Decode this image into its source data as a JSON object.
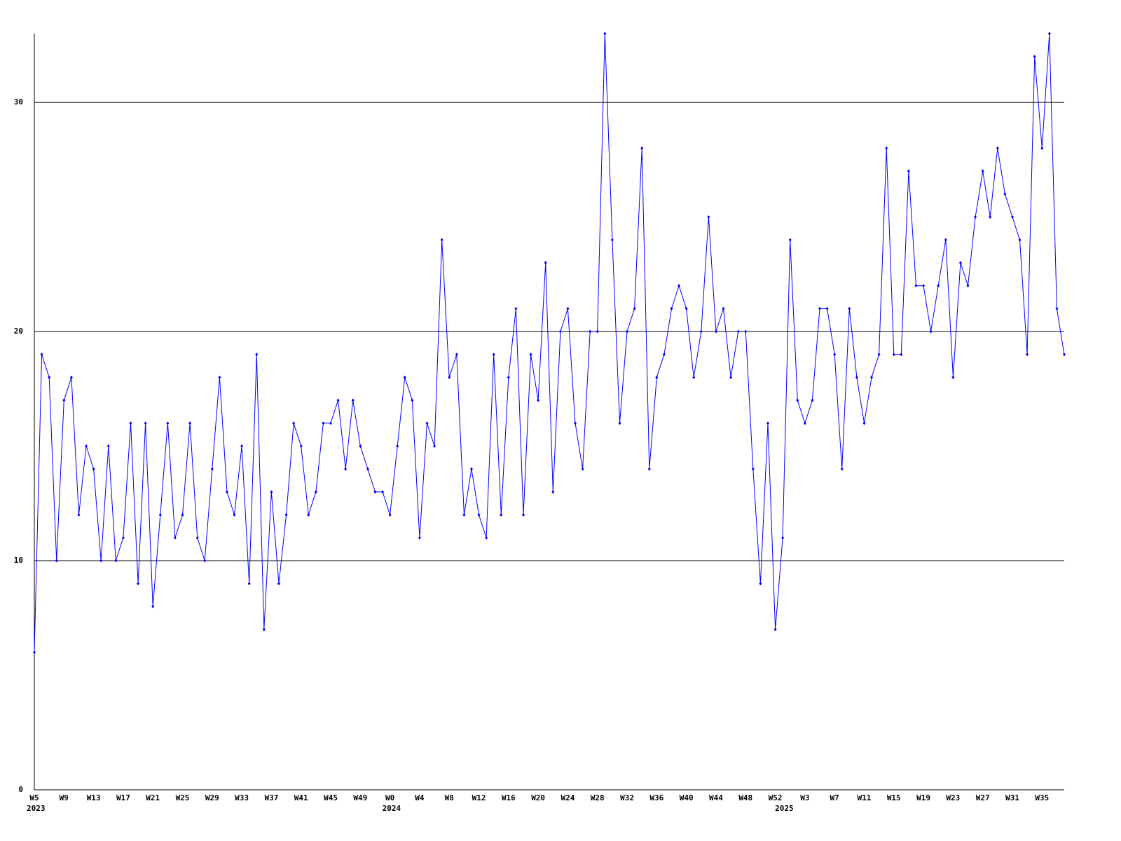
{
  "chart_data": {
    "type": "line",
    "categories": [
      "W5",
      null,
      null,
      null,
      "W9",
      null,
      null,
      null,
      "W13",
      null,
      null,
      null,
      "W17",
      null,
      null,
      null,
      "W21",
      null,
      null,
      null,
      "W25",
      null,
      null,
      null,
      "W29",
      null,
      null,
      null,
      "W33",
      null,
      null,
      null,
      "W37",
      null,
      null,
      null,
      "W41",
      null,
      null,
      null,
      "W45",
      null,
      null,
      null,
      "W49",
      null,
      null,
      null,
      "W0",
      null,
      null,
      null,
      "W4",
      null,
      null,
      null,
      "W8",
      null,
      null,
      null,
      "W12",
      null,
      null,
      null,
      "W16",
      null,
      null,
      null,
      "W20",
      null,
      null,
      null,
      "W24",
      null,
      null,
      null,
      "W28",
      null,
      null,
      null,
      "W32",
      null,
      null,
      null,
      "W36",
      null,
      null,
      null,
      "W40",
      null,
      null,
      null,
      "W44",
      null,
      null,
      null,
      "W48",
      null,
      null,
      null,
      "W52",
      null,
      null,
      null,
      "W3",
      null,
      null,
      null,
      "W7",
      null,
      null,
      null,
      "W11",
      null,
      null,
      null,
      "W15",
      null,
      null,
      null,
      "W19",
      null,
      null,
      null,
      "W23",
      null,
      null,
      null,
      "W27",
      null,
      null,
      null,
      "W31",
      null,
      null,
      null,
      "W35",
      null,
      null,
      null
    ],
    "category_years": [
      "2023",
      null,
      null,
      null,
      null,
      null,
      null,
      null,
      null,
      null,
      null,
      null,
      null,
      null,
      null,
      null,
      null,
      null,
      null,
      null,
      null,
      null,
      null,
      null,
      null,
      null,
      null,
      null,
      null,
      null,
      null,
      null,
      null,
      null,
      null,
      null,
      null,
      null,
      null,
      null,
      null,
      null,
      null,
      null,
      null,
      null,
      null,
      null,
      "2024",
      null,
      null,
      null,
      null,
      null,
      null,
      null,
      null,
      null,
      null,
      null,
      null,
      null,
      null,
      null,
      null,
      null,
      null,
      null,
      null,
      null,
      null,
      null,
      null,
      null,
      null,
      null,
      null,
      null,
      null,
      null,
      null,
      null,
      null,
      null,
      null,
      null,
      null,
      null,
      null,
      null,
      null,
      null,
      null,
      null,
      null,
      null,
      null,
      null,
      null,
      null,
      null,
      "2025",
      null,
      null,
      null,
      null,
      null,
      null,
      null,
      null,
      null,
      null,
      null,
      null,
      null,
      null,
      null,
      null,
      null,
      null,
      null,
      null,
      null,
      null,
      null,
      null,
      null,
      null,
      null,
      null,
      null,
      null,
      null,
      null,
      null,
      null,
      null,
      null,
      null,
      null
    ],
    "values": [
      6,
      19,
      18,
      10,
      17,
      18,
      12,
      15,
      14,
      10,
      15,
      10,
      11,
      16,
      9,
      16,
      8,
      12,
      16,
      11,
      12,
      16,
      11,
      10,
      14,
      18,
      13,
      12,
      15,
      9,
      19,
      7,
      13,
      9,
      12,
      16,
      15,
      12,
      13,
      16,
      16,
      17,
      14,
      17,
      15,
      14,
      13,
      13,
      12,
      15,
      18,
      17,
      11,
      16,
      15,
      24,
      18,
      19,
      12,
      14,
      12,
      11,
      19,
      12,
      18,
      21,
      12,
      19,
      17,
      23,
      13,
      20,
      21,
      16,
      14,
      20,
      20,
      33,
      24,
      16,
      20,
      21,
      28,
      14,
      18,
      19,
      21,
      22,
      21,
      18,
      20,
      25,
      20,
      21,
      18,
      20,
      20,
      14,
      9,
      16,
      7,
      11,
      24,
      17,
      16,
      17,
      21,
      21,
      19,
      14,
      21,
      18,
      16,
      18,
      19,
      28,
      19,
      19,
      27,
      22,
      22,
      20,
      22,
      24,
      18,
      23,
      22,
      25,
      27,
      25,
      28,
      26,
      25,
      24,
      19,
      32,
      28,
      33,
      21,
      19
    ],
    "color": "#0000ff",
    "ylim": [
      0,
      33
    ],
    "yticks": [
      0,
      10,
      20,
      30
    ],
    "grid": true
  }
}
